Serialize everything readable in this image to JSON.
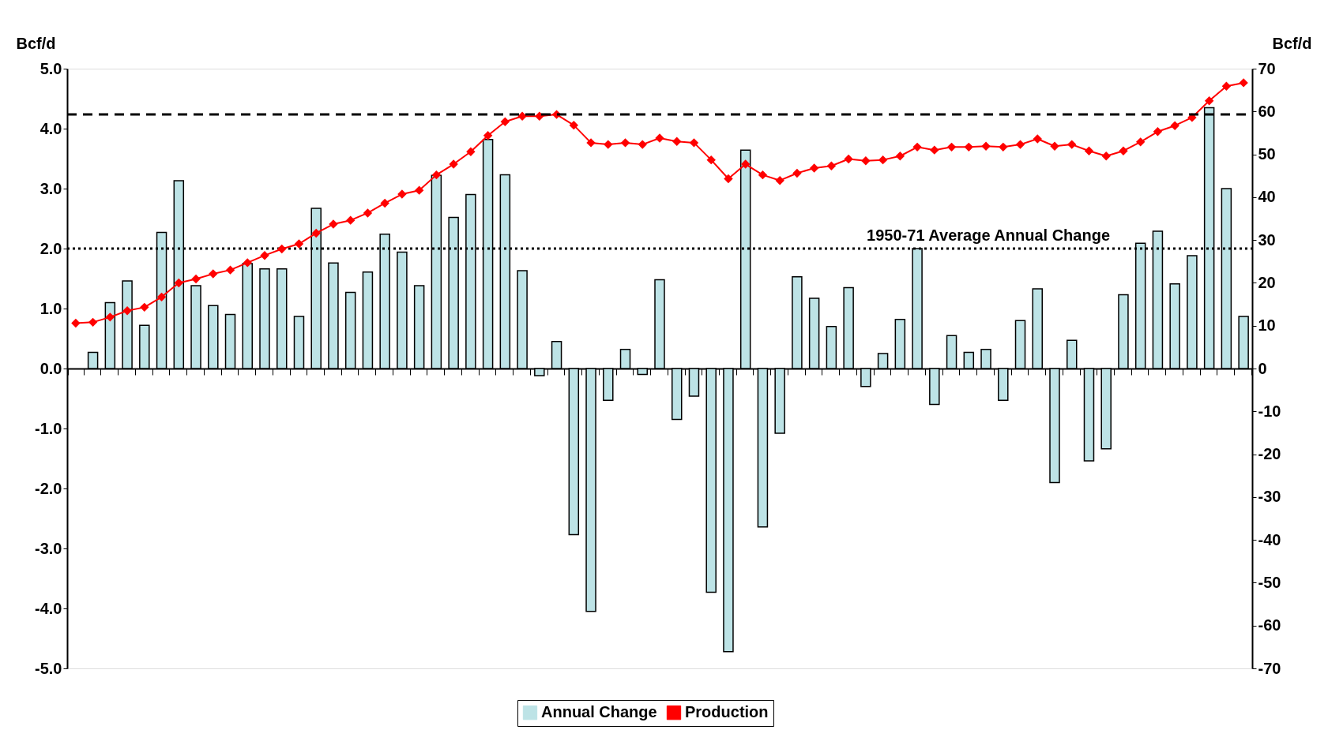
{
  "chart_data": {
    "type": "bar",
    "categories": [
      null,
      null,
      null,
      null,
      null,
      null,
      null,
      null,
      null,
      null,
      null,
      null,
      null,
      null,
      null,
      null,
      null,
      null,
      null,
      null,
      null,
      null,
      null,
      null,
      null,
      null,
      null,
      null,
      null,
      null,
      null,
      null,
      null,
      null,
      null,
      null,
      null,
      null,
      null,
      null,
      null,
      null,
      null,
      null,
      null,
      null,
      null,
      null,
      null,
      null,
      null,
      null,
      null,
      null,
      null,
      null,
      null,
      null,
      null,
      null,
      null,
      null,
      null,
      null,
      null,
      null,
      null,
      null,
      null
    ],
    "series": [
      {
        "name": "Annual Change",
        "color": "#bde3e6",
        "values": [
          null,
          0.27,
          1.1,
          1.46,
          0.72,
          2.27,
          3.13,
          1.38,
          1.05,
          0.9,
          1.75,
          1.66,
          1.66,
          0.87,
          2.67,
          1.76,
          1.27,
          1.61,
          2.24,
          1.94,
          1.38,
          3.22,
          2.52,
          2.9,
          3.82,
          3.23,
          1.63,
          -0.12,
          0.45,
          -2.77,
          -4.05,
          -0.53,
          0.32,
          -0.1,
          1.48,
          -0.85,
          -0.46,
          -3.73,
          -4.72,
          3.64,
          -2.64,
          -1.08,
          1.53,
          1.17,
          0.7,
          1.35,
          -0.3,
          0.25,
          0.82,
          2.0,
          -0.6,
          0.55,
          0.27,
          0.32,
          -0.53,
          0.8,
          1.33,
          -1.9,
          0.47,
          -1.54,
          -1.34,
          1.23,
          2.09,
          2.29,
          1.41,
          1.88,
          4.35,
          3.0,
          0.87
        ]
      },
      {
        "name": "Production",
        "type": "line",
        "axis": "y2",
        "color": "#ff0000",
        "values": [
          10.6,
          10.8,
          12.0,
          13.5,
          14.3,
          16.7,
          20.0,
          20.9,
          22.1,
          23.0,
          24.7,
          26.4,
          27.9,
          29.1,
          31.6,
          33.7,
          34.6,
          36.3,
          38.6,
          40.7,
          41.6,
          45.2,
          47.7,
          50.6,
          54.4,
          57.6,
          58.9,
          58.9,
          59.3,
          56.8,
          52.7,
          52.3,
          52.7,
          52.3,
          53.8,
          53.0,
          52.7,
          48.7,
          44.3,
          47.7,
          45.2,
          43.9,
          45.6,
          46.8,
          47.3,
          48.9,
          48.5,
          48.7,
          49.6,
          51.7,
          51.0,
          51.7,
          51.7,
          51.9,
          51.7,
          52.3,
          53.6,
          51.9,
          52.3,
          50.8,
          49.6,
          50.8,
          52.9,
          55.3,
          56.7,
          58.6,
          62.5,
          65.9,
          66.7
        ]
      }
    ],
    "ylabel": "Bcf/d",
    "y2label": "Bcf/d",
    "ylim": [
      -5,
      5
    ],
    "yticks": [
      {
        "value": -5,
        "label": "-5.0"
      },
      {
        "value": -4,
        "label": "-4.0"
      },
      {
        "value": -3,
        "label": "-3.0"
      },
      {
        "value": -2,
        "label": "-2.0"
      },
      {
        "value": -1,
        "label": "-1.0"
      },
      {
        "value": 0,
        "label": "0.0"
      },
      {
        "value": 1,
        "label": "1.0"
      },
      {
        "value": 2,
        "label": "2.0"
      },
      {
        "value": 3,
        "label": "3.0"
      },
      {
        "value": 4,
        "label": "4.0"
      },
      {
        "value": 5,
        "label": "5.0"
      }
    ],
    "y2lim": [
      -70,
      70
    ],
    "y2ticks": [
      -70,
      -60,
      -50,
      -40,
      -30,
      -20,
      -10,
      0,
      10,
      20,
      30,
      40,
      50,
      60,
      70
    ],
    "ref_lines": [
      {
        "axis": "y2",
        "value": 59.3,
        "color": "#000000",
        "line_style": "dashed"
      },
      {
        "axis": "y",
        "value": 2.0,
        "label": "1950-71 Average Annual Change",
        "color": "#000000",
        "line_style": "dotted"
      }
    ],
    "legend": "bottom",
    "grid": false,
    "marker": "diamond",
    "line_style": "solid"
  }
}
